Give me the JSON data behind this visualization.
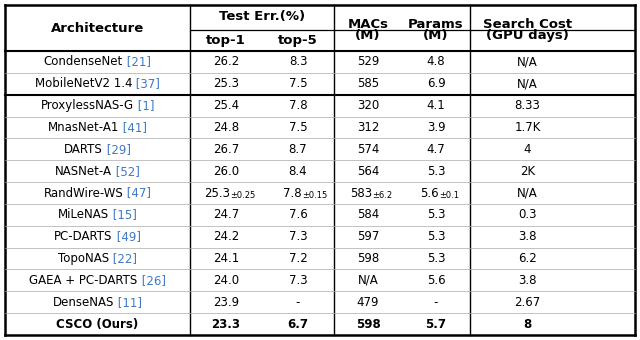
{
  "col_headers": [
    {
      "line1": "Architecture",
      "line2": "",
      "span": 1
    },
    {
      "line1": "Test Err.(%)",
      "line2": "top-1",
      "span": 1
    },
    {
      "line1": "",
      "line2": "top-5",
      "span": 1
    },
    {
      "line1": "MACs",
      "line2": "(M)",
      "span": 1
    },
    {
      "line1": "Params",
      "line2": "(M)",
      "span": 1
    },
    {
      "line1": "Search Cost",
      "line2": "(GPU days)",
      "span": 1
    }
  ],
  "rows": [
    {
      "arch": "CondenseNet",
      "ref": " [21]",
      "top1": "26.2",
      "top5": "8.3",
      "macs": "529",
      "params": "4.8",
      "cost": "N/A",
      "group": 1,
      "bold": false,
      "subscript": false
    },
    {
      "arch": "MobileNetV2 1.4",
      "ref": " [37]",
      "top1": "25.3",
      "top5": "7.5",
      "macs": "585",
      "params": "6.9",
      "cost": "N/A",
      "group": 1,
      "bold": false,
      "subscript": false
    },
    {
      "arch": "ProxylessNAS-G",
      "ref": " [1]",
      "top1": "25.4",
      "top5": "7.8",
      "macs": "320",
      "params": "4.1",
      "cost": "8.33",
      "group": 2,
      "bold": false,
      "subscript": false
    },
    {
      "arch": "MnasNet-A1",
      "ref": " [41]",
      "top1": "24.8",
      "top5": "7.5",
      "macs": "312",
      "params": "3.9",
      "cost": "1.7K",
      "group": 2,
      "bold": false,
      "subscript": false
    },
    {
      "arch": "DARTS",
      "ref": " [29]",
      "top1": "26.7",
      "top5": "8.7",
      "macs": "574",
      "params": "4.7",
      "cost": "4",
      "group": 2,
      "bold": false,
      "subscript": false
    },
    {
      "arch": "NASNet-A",
      "ref": " [52]",
      "top1": "26.0",
      "top5": "8.4",
      "macs": "564",
      "params": "5.3",
      "cost": "2K",
      "group": 2,
      "bold": false,
      "subscript": false
    },
    {
      "arch": "RandWire-WS",
      "ref": " [47]",
      "top1": "25.3",
      "top1_sub": "±0.25",
      "top5": "7.8",
      "top5_sub": "±0.15",
      "macs": "583",
      "macs_sub": "±6.2",
      "params": "5.6",
      "params_sub": "±0.1",
      "cost": "N/A",
      "group": 2,
      "bold": false,
      "subscript": true
    },
    {
      "arch": "MiLeNAS",
      "ref": " [15]",
      "top1": "24.7",
      "top5": "7.6",
      "macs": "584",
      "params": "5.3",
      "cost": "0.3",
      "group": 2,
      "bold": false,
      "subscript": false
    },
    {
      "arch": "PC-DARTS",
      "ref": " [49]",
      "top1": "24.2",
      "top5": "7.3",
      "macs": "597",
      "params": "5.3",
      "cost": "3.8",
      "group": 2,
      "bold": false,
      "subscript": false
    },
    {
      "arch": "TopoNAS",
      "ref": " [22]",
      "top1": "24.1",
      "top5": "7.2",
      "macs": "598",
      "params": "5.3",
      "cost": "6.2",
      "group": 2,
      "bold": false,
      "subscript": false
    },
    {
      "arch": "GAEA + PC-DARTS",
      "ref": " [26]",
      "top1": "24.0",
      "top5": "7.3",
      "macs": "N/A",
      "params": "5.6",
      "cost": "3.8",
      "group": 2,
      "bold": false,
      "subscript": false
    },
    {
      "arch": "DenseNAS",
      "ref": " [11]",
      "top1": "23.9",
      "top5": "-",
      "macs": "479",
      "params": "-",
      "cost": "2.67",
      "group": 2,
      "bold": false,
      "subscript": false
    },
    {
      "arch": "CSCO (Ours)",
      "ref": "",
      "top1": "23.3",
      "top5": "6.7",
      "macs": "598",
      "params": "5.7",
      "cost": "8",
      "group": 2,
      "bold": true,
      "subscript": false
    }
  ],
  "ref_color": "#4078c8",
  "text_color": "#000000",
  "bg_color": "#ffffff",
  "header_font": 9.5,
  "data_font": 8.5,
  "sub_font": 6.0
}
